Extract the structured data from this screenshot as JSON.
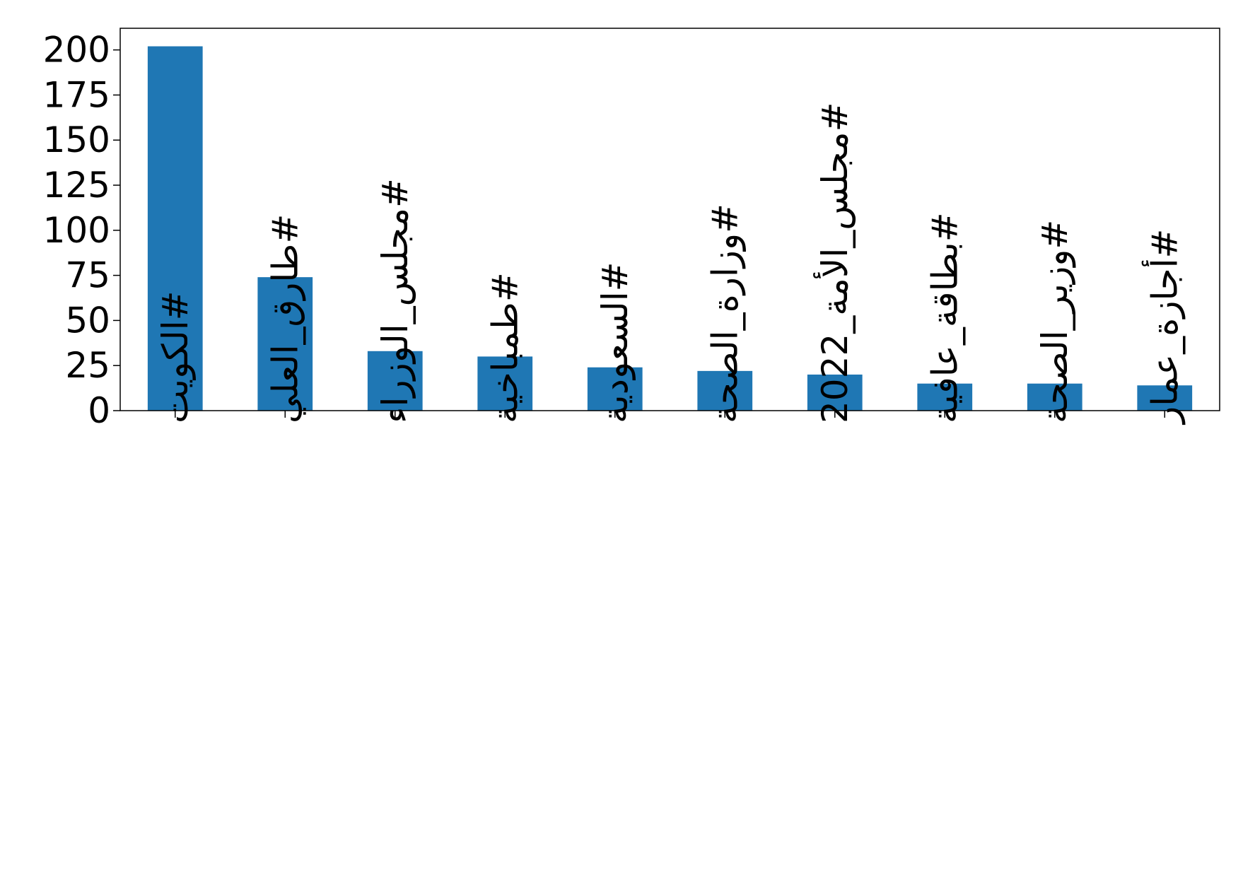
{
  "chart_data": {
    "type": "bar",
    "title": "",
    "xlabel": "",
    "ylabel": "",
    "ylim": [
      0,
      212
    ],
    "y_ticks": [
      "0",
      "25",
      "50",
      "75",
      "100",
      "125",
      "150",
      "175",
      "200"
    ],
    "categories": [
      "#الكويت",
      "#طارق_العلي",
      "#مجلس_الوزراء",
      "#طمباخية",
      "#السعودية",
      "#وزارة_الصحة",
      "#مجلس_الأمة_2022",
      "#بطاقة_عافية",
      "#وزير_الصحة",
      "#أجازة_عمار"
    ],
    "values": [
      202,
      74,
      33,
      30,
      24,
      22,
      20,
      15,
      15,
      14
    ],
    "bar_color": "#1f77b4",
    "grid": false,
    "legend": "none"
  }
}
